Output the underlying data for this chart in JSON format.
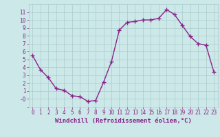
{
  "x": [
    0,
    1,
    2,
    3,
    4,
    5,
    6,
    7,
    8,
    9,
    10,
    11,
    12,
    13,
    14,
    15,
    16,
    17,
    18,
    19,
    20,
    21,
    22,
    23
  ],
  "y": [
    5.5,
    3.7,
    2.7,
    1.3,
    1.1,
    0.4,
    0.3,
    -0.3,
    -0.2,
    2.1,
    4.7,
    8.7,
    9.7,
    9.8,
    10.0,
    10.0,
    10.2,
    11.3,
    10.7,
    9.3,
    7.9,
    7.0,
    6.8,
    3.4
  ],
  "line_color": "#882288",
  "marker": "+",
  "markersize": 4,
  "linewidth": 1.0,
  "xlabel": "Windchill (Refroidissement éolien,°C)",
  "xlabel_fontsize": 6.5,
  "bg_color": "#cce8e8",
  "grid_color": "#aacccc",
  "tick_color": "#882288",
  "label_color": "#882288",
  "ylim": [
    -1,
    12
  ],
  "xlim": [
    -0.5,
    23.5
  ],
  "ytick_labels": [
    "",
    "-0",
    "1",
    "2",
    "3",
    "4",
    "5",
    "6",
    "7",
    "8",
    "9",
    "10",
    "11"
  ],
  "ytick_pos": [
    -1,
    0,
    1,
    2,
    3,
    4,
    5,
    6,
    7,
    8,
    9,
    10,
    11
  ],
  "xticks": [
    0,
    1,
    2,
    3,
    4,
    5,
    6,
    7,
    8,
    9,
    10,
    11,
    12,
    13,
    14,
    15,
    16,
    17,
    18,
    19,
    20,
    21,
    22,
    23
  ]
}
